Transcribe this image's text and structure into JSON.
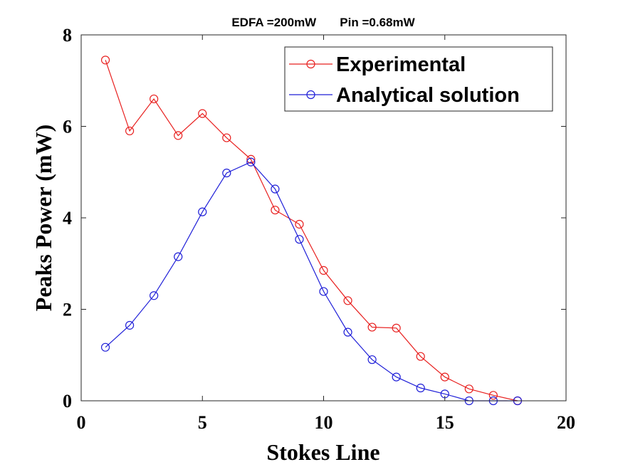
{
  "chart_data": {
    "type": "line",
    "title": "EDFA =200mW       Pin =0.68mW",
    "xlabel": "Stokes Line",
    "ylabel": "Peaks Power (mW)",
    "xlim": [
      0,
      20
    ],
    "ylim": [
      0,
      8
    ],
    "xticks": [
      0,
      5,
      10,
      15,
      20
    ],
    "yticks": [
      0,
      2,
      4,
      6,
      8
    ],
    "grid": false,
    "legend_position": "top-right",
    "series": [
      {
        "name": "Experimental",
        "color": "#e8201f",
        "marker": "circle",
        "x": [
          1,
          2,
          3,
          4,
          5,
          6,
          7,
          8,
          9,
          10,
          11,
          12,
          13,
          14,
          15,
          16,
          17,
          18
        ],
        "y": [
          7.45,
          5.9,
          6.6,
          5.8,
          6.28,
          5.75,
          5.28,
          4.17,
          3.86,
          2.85,
          2.19,
          1.61,
          1.59,
          0.97,
          0.52,
          0.26,
          0.12,
          0.0
        ]
      },
      {
        "name": "Analytical solution",
        "color": "#1f1fd8",
        "marker": "circle",
        "x": [
          1,
          2,
          3,
          4,
          5,
          6,
          7,
          8,
          9,
          10,
          11,
          12,
          13,
          14,
          15,
          16,
          17,
          18
        ],
        "y": [
          1.17,
          1.65,
          2.3,
          3.15,
          4.13,
          4.98,
          5.22,
          4.63,
          3.53,
          2.39,
          1.5,
          0.9,
          0.52,
          0.28,
          0.15,
          0.0,
          0.0,
          0.0
        ]
      }
    ]
  }
}
